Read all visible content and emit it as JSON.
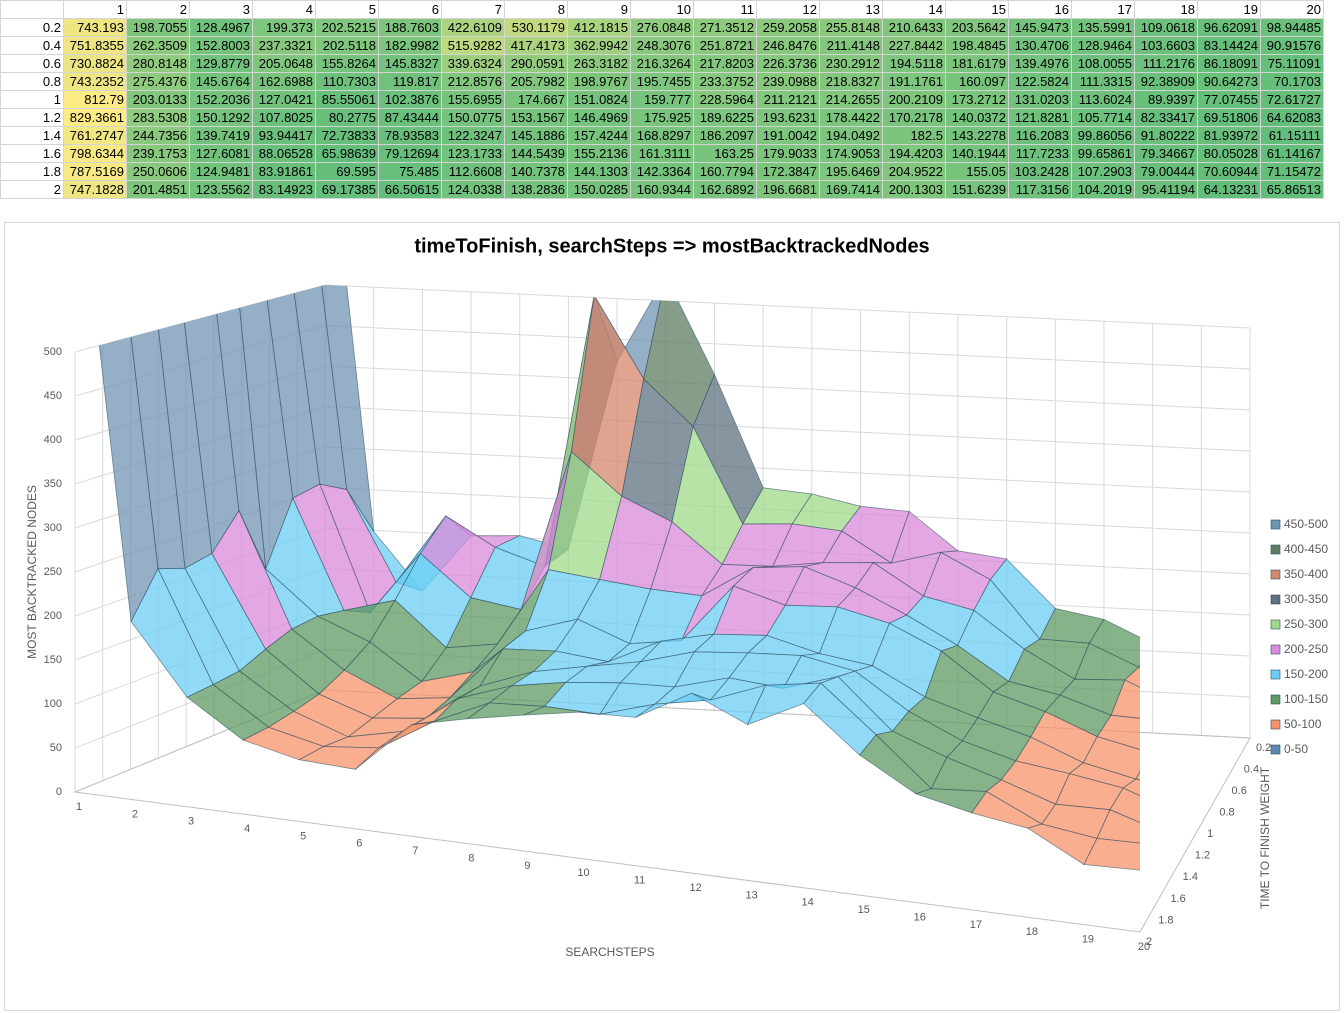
{
  "table": {
    "columns": [
      1,
      2,
      3,
      4,
      5,
      6,
      7,
      8,
      9,
      10,
      11,
      12,
      13,
      14,
      15,
      16,
      17,
      18,
      19,
      20
    ],
    "rows": [
      {
        "label": 0.2,
        "values": [
          743.193,
          198.7055,
          128.4967,
          199.373,
          202.5215,
          188.7603,
          422.6109,
          530.1179,
          412.1815,
          276.0848,
          271.3512,
          259.2058,
          255.8148,
          210.6433,
          203.5642,
          145.9473,
          135.5991,
          109.0618,
          96.62091,
          98.94485
        ]
      },
      {
        "label": 0.4,
        "values": [
          751.8355,
          262.3509,
          152.8003,
          237.3321,
          202.5118,
          182.9982,
          515.9282,
          417.4173,
          362.9942,
          248.3076,
          251.8721,
          246.8476,
          211.4148,
          227.8442,
          198.4845,
          130.4706,
          128.9464,
          103.6603,
          83.14424,
          90.91576
        ]
      },
      {
        "label": 0.6,
        "values": [
          730.8824,
          280.8148,
          129.8779,
          205.0648,
          155.8264,
          145.8327,
          339.6324,
          290.0591,
          263.3182,
          216.3264,
          217.8203,
          226.3736,
          230.2912,
          194.5118,
          181.6179,
          139.4976,
          108.0055,
          111.2176,
          86.18091,
          75.11091
        ]
      },
      {
        "label": 0.8,
        "values": [
          743.2352,
          275.4376,
          145.6764,
          162.6988,
          110.7303,
          119.817,
          212.8576,
          205.7982,
          198.9767,
          195.7455,
          233.3752,
          239.0988,
          218.8327,
          191.1761,
          160.097,
          122.5824,
          111.3315,
          92.38909,
          90.64273,
          70.1703
        ]
      },
      {
        "label": 1,
        "values": [
          812.79,
          203.0133,
          152.2036,
          127.0421,
          85.55061,
          102.3876,
          155.6955,
          174.667,
          151.0824,
          159.777,
          228.5964,
          211.2121,
          214.2655,
          200.2109,
          173.2712,
          131.0203,
          113.6024,
          89.9397,
          77.07455,
          72.61727
        ]
      },
      {
        "label": 1.2,
        "values": [
          829.3661,
          283.5308,
          150.1292,
          107.8025,
          80.2775,
          87.43444,
          150.0775,
          153.1567,
          146.4969,
          175.925,
          189.6225,
          193.6231,
          178.4422,
          170.2178,
          140.0372,
          121.8281,
          105.7714,
          82.33417,
          69.51806,
          64.62083
        ]
      },
      {
        "label": 1.4,
        "values": [
          761.2747,
          244.7356,
          139.7419,
          93.94417,
          72.73833,
          78.93583,
          122.3247,
          145.1886,
          157.4244,
          168.8297,
          186.2097,
          191.0042,
          194.0492,
          182.5,
          143.2278,
          116.2083,
          99.86056,
          91.80222,
          81.93972,
          61.15111
        ]
      },
      {
        "label": 1.6,
        "values": [
          798.6344,
          239.1753,
          127.6081,
          88.06528,
          65.98639,
          79.12694,
          123.1733,
          144.5439,
          155.2136,
          161.3111,
          163.25,
          179.9033,
          174.9053,
          194.4203,
          140.1944,
          117.7233,
          99.65861,
          79.34667,
          80.05028,
          61.14167
        ]
      },
      {
        "label": 1.8,
        "values": [
          787.5169,
          250.0606,
          124.9481,
          83.91861,
          69.595,
          75.485,
          112.6608,
          140.7378,
          144.1303,
          142.3364,
          160.7794,
          172.3847,
          195.6469,
          204.9522,
          155.05,
          103.2428,
          107.2903,
          79.00444,
          70.60944,
          71.15472
        ]
      },
      {
        "label": 2,
        "values": [
          747.1828,
          201.4851,
          123.5562,
          83.14923,
          69.17385,
          66.50615,
          124.0338,
          138.2836,
          150.0285,
          160.9344,
          162.6892,
          196.6681,
          169.7414,
          200.1303,
          151.6239,
          117.3156,
          104.2019,
          95.41194,
          64.13231,
          65.86513
        ]
      }
    ]
  },
  "chart_data": {
    "type": "surface",
    "title": "timeToFinish, searchSteps => mostBacktrackedNodes",
    "x_label": "SEARCHSTEPS",
    "y_label": "MOST BACKTRACKED NODES",
    "z_label": "TIME TO FINISH  WEIGHT",
    "categories": [
      1,
      2,
      3,
      4,
      5,
      6,
      7,
      8,
      9,
      10,
      11,
      12,
      13,
      14,
      15,
      16,
      17,
      18,
      19,
      20
    ],
    "depth_categories": [
      0.2,
      0.4,
      0.6,
      0.8,
      1,
      1.2,
      1.4,
      1.6,
      1.8,
      2
    ],
    "ylim": [
      0,
      500
    ],
    "yticks": [
      0,
      50,
      100,
      150,
      200,
      250,
      300,
      350,
      400,
      450,
      500
    ],
    "grid": true,
    "legend": "right",
    "bands": [
      {
        "name": "0-50",
        "color": "#5f88ae"
      },
      {
        "name": "50-100",
        "color": "#f7936a"
      },
      {
        "name": "100-150",
        "color": "#5e9a62"
      },
      {
        "name": "150-200",
        "color": "#6ccdf4"
      },
      {
        "name": "200-250",
        "color": "#d98ad9"
      },
      {
        "name": "250-300",
        "color": "#9fd98a"
      },
      {
        "name": "300-350",
        "color": "#5f7182"
      },
      {
        "name": "350-400",
        "color": "#d4876c"
      },
      {
        "name": "400-450",
        "color": "#5e7d62"
      },
      {
        "name": "450-500",
        "color": "#7094b3"
      }
    ]
  }
}
